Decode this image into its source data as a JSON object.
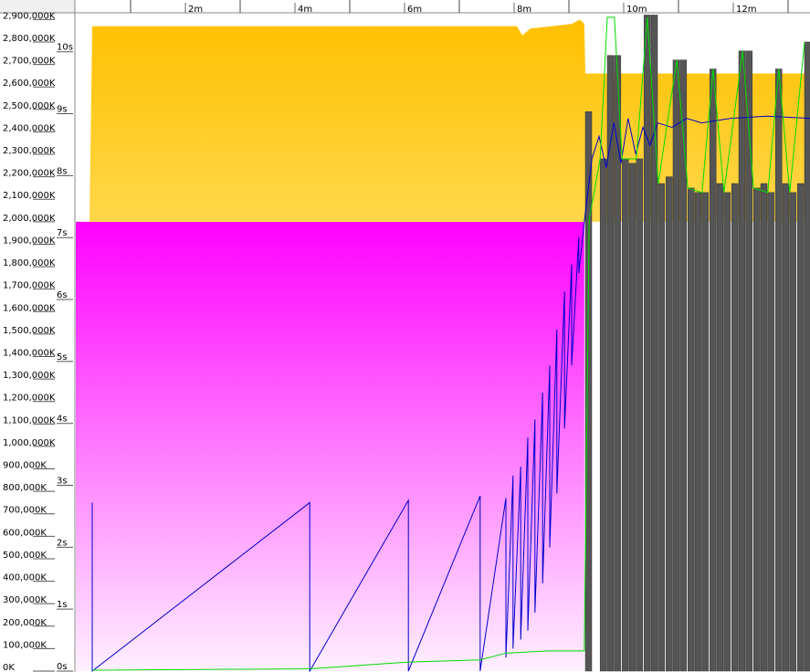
{
  "chart_data": {
    "type": "combo",
    "xlim": [
      0,
      13.4
    ],
    "xticks": [
      {
        "value": 2,
        "label": "2m"
      },
      {
        "value": 4,
        "label": "4m"
      },
      {
        "value": 6,
        "label": "6m"
      },
      {
        "value": 8,
        "label": "8m"
      },
      {
        "value": 10,
        "label": "10m"
      },
      {
        "value": 12,
        "label": "12m"
      }
    ],
    "xminorticks": [
      1,
      3,
      5,
      7,
      9,
      11,
      13
    ],
    "ylim": [
      0,
      2930000
    ],
    "yticks": [
      {
        "value": 0,
        "label": "0K"
      },
      {
        "value": 100000,
        "label": "100,000K"
      },
      {
        "value": 200000,
        "label": "200,000K"
      },
      {
        "value": 300000,
        "label": "300,000K"
      },
      {
        "value": 400000,
        "label": "400,000K"
      },
      {
        "value": 500000,
        "label": "500,000K"
      },
      {
        "value": 600000,
        "label": "600,000K"
      },
      {
        "value": 700000,
        "label": "700,000K"
      },
      {
        "value": 800000,
        "label": "800,000K"
      },
      {
        "value": 900000,
        "label": "900,000K"
      },
      {
        "value": 1000000,
        "label": "1,000,000K"
      },
      {
        "value": 1100000,
        "label": "1,100,000K"
      },
      {
        "value": 1200000,
        "label": "1,200,000K"
      },
      {
        "value": 1300000,
        "label": "1,300,000K"
      },
      {
        "value": 1400000,
        "label": "1,400,000K"
      },
      {
        "value": 1500000,
        "label": "1,500,000K"
      },
      {
        "value": 1600000,
        "label": "1,600,000K"
      },
      {
        "value": 1700000,
        "label": "1,700,000K"
      },
      {
        "value": 1800000,
        "label": "1,800,000K"
      },
      {
        "value": 1900000,
        "label": "1,900,000K"
      },
      {
        "value": 2000000,
        "label": "2,000,000K"
      },
      {
        "value": 2100000,
        "label": "2,100,000K"
      },
      {
        "value": 2200000,
        "label": "2,200,000K"
      },
      {
        "value": 2300000,
        "label": "2,300,000K"
      },
      {
        "value": 2400000,
        "label": "2,400,000K"
      },
      {
        "value": 2500000,
        "label": "2,500,000K"
      },
      {
        "value": 2600000,
        "label": "2,600,000K"
      },
      {
        "value": 2700000,
        "label": "2,700,000K"
      },
      {
        "value": 2800000,
        "label": "2,800,000K"
      },
      {
        "value": 2900000,
        "label": "2,900,000K"
      }
    ],
    "y2lim": [
      0,
      10.63
    ],
    "y2ticks": [
      {
        "value": 0,
        "label": "0s"
      },
      {
        "value": 1,
        "label": "1s"
      },
      {
        "value": 2,
        "label": "2s"
      },
      {
        "value": 3,
        "label": "3s"
      },
      {
        "value": 4,
        "label": "4s"
      },
      {
        "value": 5,
        "label": "5s"
      },
      {
        "value": 6,
        "label": "6s"
      },
      {
        "value": 7,
        "label": "7s"
      },
      {
        "value": 8,
        "label": "8s"
      },
      {
        "value": 9,
        "label": "9s"
      },
      {
        "value": 10,
        "label": "10s"
      }
    ],
    "series": [
      {
        "kind": "area",
        "color": "#ff00ff",
        "color2": "#fff0ff",
        "x": [
          0,
          9.28
        ],
        "values": [
          2000000,
          2000000
        ]
      },
      {
        "kind": "area",
        "base": 2000000,
        "color": "#ffc000",
        "color2": "#ffd84a",
        "x": [
          0.25,
          0.3,
          8.05,
          8.15,
          8.3,
          9.05,
          9.2,
          9.28,
          9.3,
          13.4
        ],
        "values": [
          2000000,
          2870000,
          2870000,
          2830000,
          2860000,
          2880000,
          2900000,
          2880000,
          2660000,
          2660000
        ]
      },
      {
        "kind": "bar",
        "color": "#555555",
        "x": [
          9.3,
          9.57,
          9.7,
          9.83,
          9.97,
          10.1,
          10.23,
          10.37,
          10.5,
          10.63,
          10.77,
          10.9,
          11.03,
          11.17,
          11.3,
          11.43,
          11.57,
          11.7,
          11.83,
          11.97,
          12.1,
          12.23,
          12.37,
          12.5,
          12.63,
          12.77,
          12.9,
          13.03,
          13.17,
          13.3
        ],
        "values": [
          2490000,
          2280000,
          2740000,
          2740000,
          2280000,
          2260000,
          2280000,
          2920000,
          2920000,
          2170000,
          2200000,
          2720000,
          2720000,
          2150000,
          2130000,
          2130000,
          2680000,
          2170000,
          2130000,
          2170000,
          2760000,
          2760000,
          2150000,
          2170000,
          2130000,
          2680000,
          2170000,
          2130000,
          2170000,
          2800000
        ]
      },
      {
        "kind": "line",
        "color": "#0000cc",
        "x": [
          0.3,
          0.3,
          0.3,
          4.27,
          4.27,
          6.07,
          6.07,
          7.38,
          7.38,
          7.85,
          7.85,
          7.98,
          7.98,
          8.12,
          8.12,
          8.25,
          8.25,
          8.38,
          8.38,
          8.52,
          8.52,
          8.65,
          8.65,
          8.78,
          8.78,
          8.92,
          8.92,
          9.05,
          9.05,
          9.18,
          9.18,
          9.28,
          9.42,
          9.55,
          9.68,
          9.82,
          9.95,
          10.08,
          10.22,
          10.35,
          10.48,
          10.62,
          10.88,
          11.15,
          11.42,
          11.95,
          12.62,
          13.4
        ],
        "values": [
          0,
          750000,
          0,
          750000,
          0,
          760000,
          0,
          780000,
          0,
          770000,
          60000,
          870000,
          100000,
          910000,
          140000,
          1040000,
          180000,
          1120000,
          260000,
          1240000,
          390000,
          1360000,
          550000,
          1520000,
          790000,
          1690000,
          1080000,
          1810000,
          1360000,
          1930000,
          1770000,
          2000000,
          2280000,
          2380000,
          2240000,
          2440000,
          2260000,
          2460000,
          2300000,
          2420000,
          2340000,
          2440000,
          2420000,
          2460000,
          2440000,
          2460000,
          2470000,
          2460000
        ]
      },
      {
        "kind": "line",
        "color": "#00dd00",
        "x": [
          0.3,
          4.27,
          6.07,
          7.38,
          7.85,
          8.62,
          9.28,
          9.37,
          9.57,
          9.7,
          9.83,
          9.97,
          10.23,
          10.43,
          10.63,
          10.97,
          11.17,
          11.43,
          11.63,
          11.83,
          12.17,
          12.37,
          12.63,
          12.83,
          13.03,
          13.3
        ],
        "values": [
          4000,
          10000,
          40000,
          50000,
          80000,
          90000,
          90000,
          2010000,
          2280000,
          2910000,
          2910000,
          2280000,
          2280000,
          2910000,
          2170000,
          2720000,
          2150000,
          2130000,
          2680000,
          2130000,
          2760000,
          2150000,
          2130000,
          2680000,
          2130000,
          2800000
        ]
      }
    ]
  }
}
